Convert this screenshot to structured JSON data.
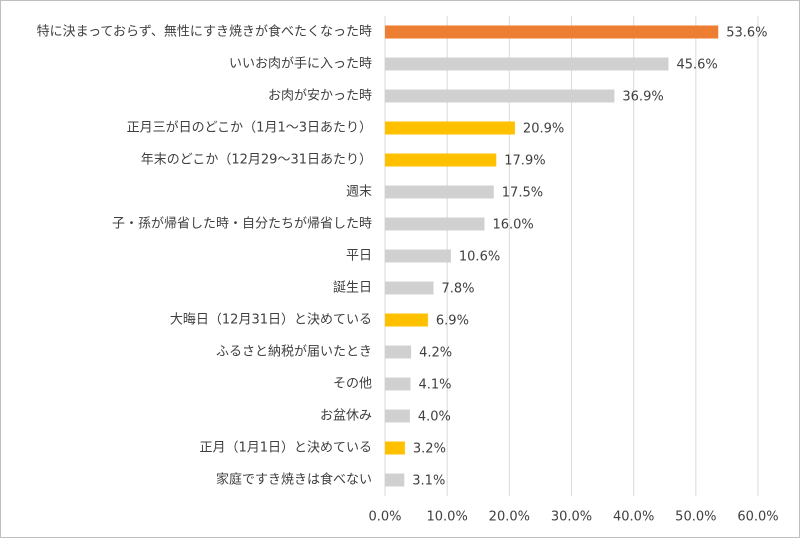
{
  "chart_data": {
    "type": "barh",
    "categories": [
      "特に決まっておらず、無性にすき焼きが食べたくなった時",
      "いいお肉が手に入った時",
      "お肉が安かった時",
      "正月三が日のどこか（1月1～3日あたり）",
      "年末のどこか（12月29～31日あたり）",
      "週末",
      "子・孫が帰省した時・自分たちが帰省した時",
      "平日",
      "誕生日",
      "大晦日（12月31日）と決めている",
      "ふるさと納税が届いたとき",
      "その他",
      "お盆休み",
      "正月（1月1日）と決めている",
      "家庭ですき焼きは食べない"
    ],
    "values": [
      53.6,
      45.6,
      36.9,
      20.9,
      17.9,
      17.5,
      16.0,
      10.6,
      7.8,
      6.9,
      4.2,
      4.1,
      4.0,
      3.2,
      3.1
    ],
    "value_labels": [
      "53.6%",
      "45.6%",
      "36.9%",
      "20.9%",
      "17.9%",
      "17.5%",
      "16.0%",
      "10.6%",
      "7.8%",
      "6.9%",
      "4.2%",
      "4.1%",
      "4.0%",
      "3.2%",
      "3.1%"
    ],
    "colors": [
      "#ed7d31",
      "#d0d0d0",
      "#d0d0d0",
      "#ffc000",
      "#ffc000",
      "#d0d0d0",
      "#d0d0d0",
      "#d0d0d0",
      "#d0d0d0",
      "#ffc000",
      "#d0d0d0",
      "#d0d0d0",
      "#d0d0d0",
      "#ffc000",
      "#d0d0d0"
    ],
    "xlim": [
      0,
      60
    ],
    "xticks": [
      {
        "value": 0,
        "label": "0.0%"
      },
      {
        "value": 10,
        "label": "10.0%"
      },
      {
        "value": 20,
        "label": "20.0%"
      },
      {
        "value": 30,
        "label": "30.0%"
      },
      {
        "value": 40,
        "label": "40.0%"
      },
      {
        "value": 50,
        "label": "50.0%"
      },
      {
        "value": 60,
        "label": "60.0%"
      }
    ],
    "grid": true
  }
}
